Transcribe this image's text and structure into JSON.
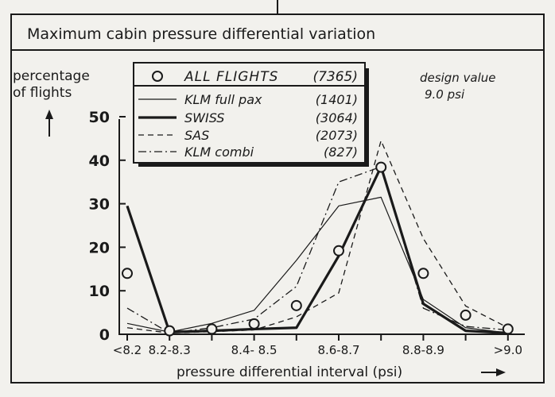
{
  "chart_data": {
    "type": "line",
    "title": "Maximum cabin pressure differential variation",
    "ylabel": [
      "percentage",
      "of flights"
    ],
    "xlabel": "pressure differential interval (psi)",
    "ylim": [
      0,
      50
    ],
    "yticks": [
      0,
      10,
      20,
      30,
      40,
      50
    ],
    "x_tick_labels": [
      "<8.2",
      "8.2-8.3",
      "8.4- 8.5",
      "8.6-8.7",
      "8.8-8.9",
      ">9.0"
    ],
    "x_tick_positions": [
      0,
      1,
      3,
      5,
      7,
      9
    ],
    "annotation": [
      "design value",
      "9.0 psi"
    ],
    "legend_position": "top-center",
    "series": [
      {
        "name": "ALL FLIGHTS",
        "count": "(7365)",
        "style": "markers",
        "x": [
          0,
          1,
          2,
          3,
          4,
          5,
          6,
          7,
          8,
          9
        ],
        "values": [
          14,
          0.8,
          1.2,
          2.4,
          6.6,
          19.2,
          38.4,
          14,
          4.4,
          1.2
        ]
      },
      {
        "name": "KLM full pax",
        "count": "(1401)",
        "style": "thin",
        "x": [
          0,
          1,
          2,
          3,
          4,
          5,
          6,
          7,
          8,
          9
        ],
        "values": [
          2.5,
          0.5,
          2.5,
          5.5,
          17,
          29.5,
          31.5,
          8,
          1.5,
          0.3
        ]
      },
      {
        "name": "SWISS",
        "count": "(3064)",
        "style": "thick",
        "x": [
          0,
          1,
          2,
          3,
          4,
          5,
          6,
          7,
          8,
          9
        ],
        "values": [
          29.5,
          0.5,
          0.8,
          1.2,
          1.5,
          18,
          38.5,
          7,
          0.8,
          0.3
        ]
      },
      {
        "name": "SAS",
        "count": "(2073)",
        "style": "dashed",
        "x": [
          0,
          1,
          2,
          3,
          4,
          5,
          6,
          7,
          8,
          9
        ],
        "values": [
          1.5,
          0.3,
          0.6,
          1,
          4,
          9.5,
          44.5,
          22,
          6.5,
          1.5
        ]
      },
      {
        "name": "KLM combi",
        "count": "(827)",
        "style": "dashdot",
        "x": [
          0,
          1,
          2,
          3,
          4,
          5,
          6,
          7,
          8,
          9
        ],
        "values": [
          6,
          0.3,
          1.5,
          3.5,
          11,
          35,
          38.5,
          6,
          1.8,
          1
        ]
      }
    ]
  }
}
